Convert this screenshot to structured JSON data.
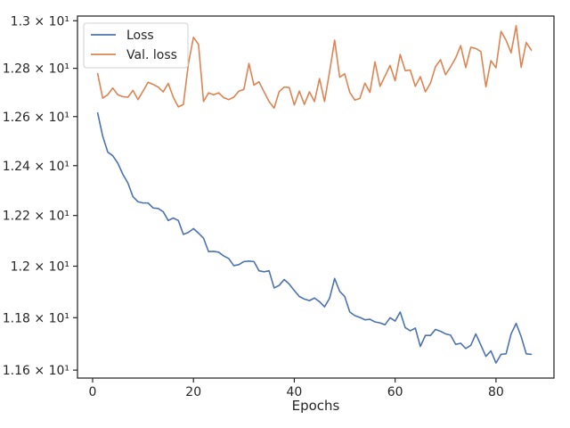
{
  "chart_data": {
    "type": "line",
    "xlabel": "Epochs",
    "ylabel": "",
    "yscale": "log",
    "xlim": [
      -3,
      91.5
    ],
    "ylim": [
      11.57,
      13.02
    ],
    "grid": false,
    "legend_position": "top-left",
    "x_ticks": [
      0,
      20,
      40,
      60,
      80
    ],
    "x_tick_labels": [
      "0",
      "20",
      "40",
      "60",
      "80"
    ],
    "y_ticks": [
      11.6,
      11.8,
      12.0,
      12.2,
      12.4,
      12.6,
      12.8,
      13.0
    ],
    "y_tick_labels": [
      "1.16 × 10¹",
      "1.18 × 10¹",
      "1.2 × 10¹",
      "1.22 × 10¹",
      "1.24 × 10¹",
      "1.26 × 10¹",
      "1.28 × 10¹",
      "1.3 × 10¹"
    ],
    "x": [
      1,
      2,
      3,
      4,
      5,
      6,
      7,
      8,
      9,
      10,
      11,
      12,
      13,
      14,
      15,
      16,
      17,
      18,
      19,
      20,
      21,
      22,
      23,
      24,
      25,
      26,
      27,
      28,
      29,
      30,
      31,
      32,
      33,
      34,
      35,
      36,
      37,
      38,
      39,
      40,
      41,
      42,
      43,
      44,
      45,
      46,
      47,
      48,
      49,
      50,
      51,
      52,
      53,
      54,
      55,
      56,
      57,
      58,
      59,
      60,
      61,
      62,
      63,
      64,
      65,
      66,
      67,
      68,
      69,
      70,
      71,
      72,
      73,
      74,
      75,
      76,
      77,
      78,
      79,
      80,
      81,
      82,
      83,
      84,
      85,
      86,
      87
    ],
    "series": [
      {
        "name": "Loss",
        "color": "#4c72b0",
        "values": [
          12.615,
          12.52,
          12.455,
          12.44,
          12.41,
          12.365,
          12.33,
          12.275,
          12.255,
          12.25,
          12.25,
          12.23,
          12.228,
          12.215,
          12.18,
          12.19,
          12.18,
          12.125,
          12.133,
          12.148,
          12.13,
          12.11,
          12.057,
          12.058,
          12.055,
          12.04,
          12.03,
          12.002,
          12.006,
          12.018,
          12.02,
          12.018,
          11.982,
          11.978,
          11.982,
          11.915,
          11.925,
          11.948,
          11.93,
          11.905,
          11.882,
          11.872,
          11.866,
          11.876,
          11.862,
          11.842,
          11.875,
          11.952,
          11.902,
          11.882,
          11.822,
          11.808,
          11.801,
          11.792,
          11.794,
          11.784,
          11.78,
          11.773,
          11.8,
          11.787,
          11.822,
          11.762,
          11.75,
          11.76,
          11.69,
          11.732,
          11.732,
          11.755,
          11.748,
          11.738,
          11.733,
          11.698,
          11.702,
          11.682,
          11.694,
          11.738,
          11.695,
          11.652,
          11.673,
          11.627,
          11.66,
          11.662,
          11.738,
          11.778,
          11.727,
          11.662,
          11.66
        ]
      },
      {
        "name": "Val. loss",
        "color": "#dd8452",
        "values": [
          12.778,
          12.676,
          12.69,
          12.718,
          12.69,
          12.682,
          12.68,
          12.708,
          12.67,
          12.705,
          12.742,
          12.733,
          12.722,
          12.702,
          12.737,
          12.68,
          12.64,
          12.65,
          12.82,
          12.93,
          12.9,
          12.662,
          12.698,
          12.69,
          12.698,
          12.678,
          12.67,
          12.68,
          12.705,
          12.712,
          12.82,
          12.73,
          12.744,
          12.702,
          12.662,
          12.635,
          12.703,
          12.722,
          12.72,
          12.648,
          12.705,
          12.65,
          12.702,
          12.662,
          12.757,
          12.662,
          12.786,
          12.918,
          12.763,
          12.777,
          12.7,
          12.668,
          12.675,
          12.738,
          12.7,
          12.827,
          12.725,
          12.768,
          12.812,
          12.748,
          12.858,
          12.79,
          12.793,
          12.725,
          12.765,
          12.702,
          12.738,
          12.807,
          12.836,
          12.773,
          12.806,
          12.843,
          12.895,
          12.803,
          12.888,
          12.883,
          12.87,
          12.723,
          12.832,
          12.802,
          12.955,
          12.918,
          12.865,
          12.979,
          12.804,
          12.908,
          12.876
        ]
      }
    ]
  }
}
